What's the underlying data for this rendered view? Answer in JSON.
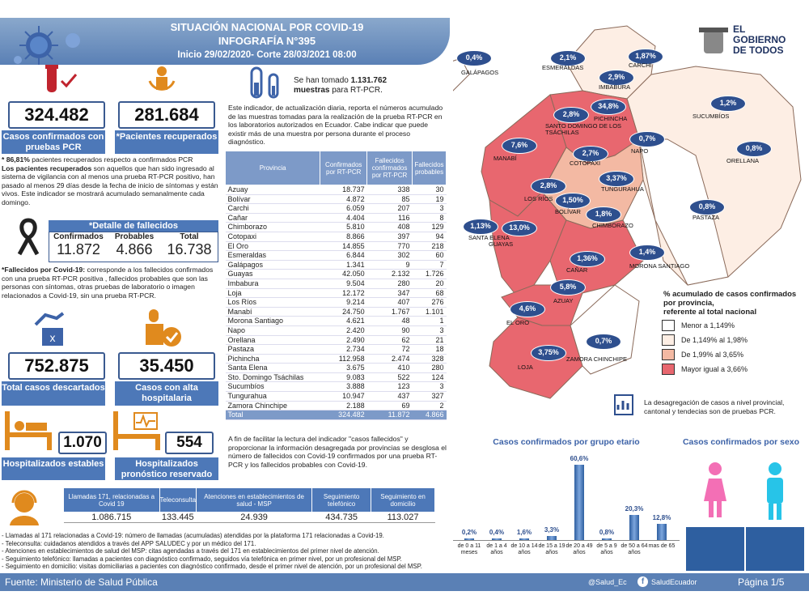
{
  "header": {
    "title1": "SITUACIÓN NACIONAL POR  COVID-19",
    "title2": "INFOGRAFÍA N°395",
    "period": "Inicio 29/02/2020- Corte 28/03/2021 08:00"
  },
  "logo": {
    "line1": "EL",
    "line2": "GOBIERNO",
    "line3": "DE TODOS"
  },
  "kpi": {
    "pcr_value": "324.482",
    "pcr_label": "Casos confirmados con pruebas PCR",
    "recovered_value": "281.684",
    "recovered_label": "*Pacientes recuperados",
    "recovered_pct": "* 86,81%",
    "recovered_note1": " pacientes recuperados respecto a confirmados PCR",
    "recovered_note2_bold": "Los pacientes recuperados",
    "recovered_note2": " son aquellos que han sido ingresado al sistema de vigilancia con al menos una prueba RT-PCR positivo, han pasado al menos 29 días desde la fecha de inicio de síntomas y están vivos. Este indicador se mostrará acumulado semanalmente cada domingo.",
    "deaths_title": "*Detalle de fallecidos",
    "deaths_h1": "Confirmados",
    "deaths_h2": "Probables",
    "deaths_h3": "Total",
    "deaths_v1": "11.872",
    "deaths_v2": "4.866",
    "deaths_v3": "16.738",
    "deaths_note_bold": "*Fallecidos por Covid-19:",
    "deaths_note": " corresponde a los fallecidos confirmados con una prueba RT-PCR positiva , fallecidos probables que son las personas con síntomas, otras pruebas de laboratorio o imagen relacionados a Covid-19, sin una prueba RT-PCR.",
    "discarded_value": "752.875",
    "discarded_label": "Total casos descartados",
    "discharged_value": "35.450",
    "discharged_label": "Casos con alta hospitalaria",
    "hosp_stable_value": "1.070",
    "hosp_stable_label": "Hospitalizados estables",
    "hosp_reserved_value": "554",
    "hosp_reserved_label": "Hospitalizados pronóstico reservado"
  },
  "tests": {
    "pre": "Se han tomado ",
    "value": "1.131.762",
    "post": "muestras",
    "post2": " para RT-PCR.",
    "note": "Este indicador, de actualización diaria, reporta el números acumulado de las muestras tomadas para la realización de la prueba RT-PCR en los laboratorios autorizados en Ecuador. Cabe indicar que puede existir más de una muestra por persona durante el proceso diagnóstico."
  },
  "table": {
    "headers": [
      "Provincia",
      "Confirmados por RT-PCR",
      "Fallecidos confirmados por RT-PCR",
      "Fallecidos probables"
    ],
    "rows": [
      [
        "Azuay",
        "18.737",
        "338",
        "30"
      ],
      [
        "Bolívar",
        "4.872",
        "85",
        "19"
      ],
      [
        "Carchi",
        "6.059",
        "207",
        "3"
      ],
      [
        "Cañar",
        "4.404",
        "116",
        "8"
      ],
      [
        "Chimborazo",
        "5.810",
        "408",
        "129"
      ],
      [
        "Cotopaxi",
        "8.866",
        "397",
        "94"
      ],
      [
        "El Oro",
        "14.855",
        "770",
        "218"
      ],
      [
        "Esmeraldas",
        "6.844",
        "302",
        "60"
      ],
      [
        "Galápagos",
        "1.341",
        "9",
        "7"
      ],
      [
        "Guayas",
        "42.050",
        "2.132",
        "1.726"
      ],
      [
        "Imbabura",
        "9.504",
        "280",
        "20"
      ],
      [
        "Loja",
        "12.172",
        "347",
        "68"
      ],
      [
        "Los Ríos",
        "9.214",
        "407",
        "276"
      ],
      [
        "Manabí",
        "24.750",
        "1.767",
        "1.101"
      ],
      [
        "Morona Santiago",
        "4.621",
        "48",
        "1"
      ],
      [
        "Napo",
        "2.420",
        "90",
        "3"
      ],
      [
        "Orellana",
        "2.490",
        "62",
        "21"
      ],
      [
        "Pastaza",
        "2.734",
        "72",
        "18"
      ],
      [
        "Pichincha",
        "112.958",
        "2.474",
        "328"
      ],
      [
        "Santa Elena",
        "3.675",
        "410",
        "280"
      ],
      [
        "Sto. Domingo Tsáchilas",
        "9.083",
        "522",
        "124"
      ],
      [
        "Sucumbíos",
        "3.888",
        "123",
        "3"
      ],
      [
        "Tungurahua",
        "10.947",
        "437",
        "327"
      ],
      [
        "Zamora Chinchipe",
        "2.188",
        "69",
        "2"
      ]
    ],
    "total": [
      "Total",
      "324.482",
      "11.872",
      "4.866"
    ],
    "note": "A fin de facilitar la lectura del indicador \"casos fallecidos\" y proporcionar la información desagregada por provincias se desglosa el número de fallecidos con Covid-19 confirmados por una prueba RT-PCR y los fallecidos probables con Covid-19."
  },
  "map": {
    "labels": [
      {
        "name": "GALÁPAGOS",
        "pct": "0,4%"
      },
      {
        "name": "ESMERALDAS",
        "pct": "2,1%"
      },
      {
        "name": "CARCHI",
        "pct": "1,87%"
      },
      {
        "name": "IMBABURA",
        "pct": "2,9%"
      },
      {
        "name": "SANTO DOMINGO DE LOS TSÁCHILAS",
        "pct": "2,8%"
      },
      {
        "name": "PICHINCHA",
        "pct": "34,8%"
      },
      {
        "name": "SUCUMBÍOS",
        "pct": "1,2%"
      },
      {
        "name": "MANABÍ",
        "pct": "7,6%"
      },
      {
        "name": "NAPO",
        "pct": "0,7%"
      },
      {
        "name": "COTOPAXI",
        "pct": "2,7%"
      },
      {
        "name": "ORELLANA",
        "pct": "0,8%"
      },
      {
        "name": "TUNGURAHUA",
        "pct": "3,37%"
      },
      {
        "name": "LOS RÍOS",
        "pct": "2,8%"
      },
      {
        "name": "BOLÍVAR",
        "pct": "1,50%"
      },
      {
        "name": "CHIMBORAZO",
        "pct": "1,8%"
      },
      {
        "name": "PASTAZA",
        "pct": "0,8%"
      },
      {
        "name": "SANTA ELENA",
        "pct": "1,13%"
      },
      {
        "name": "GUAYAS",
        "pct": "13,0%"
      },
      {
        "name": "CAÑAR",
        "pct": "1,36%"
      },
      {
        "name": "MORONA SANTIAGO",
        "pct": "1,4%"
      },
      {
        "name": "AZUAY",
        "pct": "5,8%"
      },
      {
        "name": "EL ORO",
        "pct": "4,6%"
      },
      {
        "name": "ZAMORA CHINCHIPE",
        "pct": "0,7%"
      },
      {
        "name": "LOJA",
        "pct": "3,75%"
      }
    ],
    "legend_title1": "% acumulado de casos confirmados",
    "legend_title2": "por provincia,",
    "legend_title3": "referente al total nacional",
    "legend": [
      {
        "label": "Menor a 1,149%",
        "color": "#ffffff"
      },
      {
        "label": "De 1,149% al 1,98%",
        "color": "#fdeee4"
      },
      {
        "label": "De 1,99% al 3,65%",
        "color": "#f3b9a3"
      },
      {
        "label": "Mayor igual a 3,66%",
        "color": "#e8676f"
      }
    ],
    "note": "La desagregación de casos a nivel provincial, cantonal y tendecias son  de pruebas PCR."
  },
  "age_chart": {
    "title": "Casos confirmados por grupo etario"
  },
  "chart_data": {
    "type": "bar",
    "title": "Casos confirmados por grupo etario",
    "categories": [
      "de 0 a 11 meses",
      "de 1 a 4 años",
      "de 10 a 14 años",
      "de 15 a 19 años",
      "de 20 a 49 años",
      "de 5 a 9 años",
      "de 50 a 64 años",
      "mas de 65"
    ],
    "values": [
      0.2,
      0.4,
      1.6,
      3.3,
      60.6,
      0.8,
      20.3,
      12.8
    ],
    "value_labels": [
      "0,2%",
      "0,4%",
      "1,6%",
      "3,3%",
      "60,6%",
      "0,8%",
      "20,3%",
      "12,8%"
    ],
    "ylim": [
      0,
      65
    ]
  },
  "sex_chart": {
    "title": "Casos confirmados por sexo"
  },
  "services": {
    "headers": [
      "Llamadas 171, relacionadas a Covid 19",
      "Teleconsulta",
      "Atenciones en establecimientos de salud - MSP",
      "Seguimiento telefónico",
      "Seguimiento en domicilio"
    ],
    "values": [
      "1.086.715",
      "133.445",
      "24.939",
      "434.735",
      "113.027"
    ],
    "notes": [
      "- Llamadas al 171 relacionadas a Covid-19: número de llamadas (acumuladas) atendidas por la plataforma 171 relacionadas a Covid-19.",
      "- Teleconsulta: cuidadanos atendidos a través del APP SALUDEC y por un médico del 171.",
      "- Atenciones en establecimientos de salud del MSP:  citas agendadas a través del 171 en establecimientos del primer nivel de atención.",
      "- Seguimiento telefónico: llamadas a pacientes con diagnóstico confirmado, seguidos vía telefónica en primer nivel, por un profesional del MSP.",
      "- Seguimiento en domicilio: visitas domiciliarias a pacientes con diagnóstico confirmado, desde el primer nivel de atención, por un profesional del MSP."
    ]
  },
  "footer": {
    "source_label": "Fuente: ",
    "source": "Ministerio de Salud Pública",
    "twitter": "@Salud_Ec",
    "facebook": "SaludEcuador",
    "page": "Página 1/5"
  }
}
